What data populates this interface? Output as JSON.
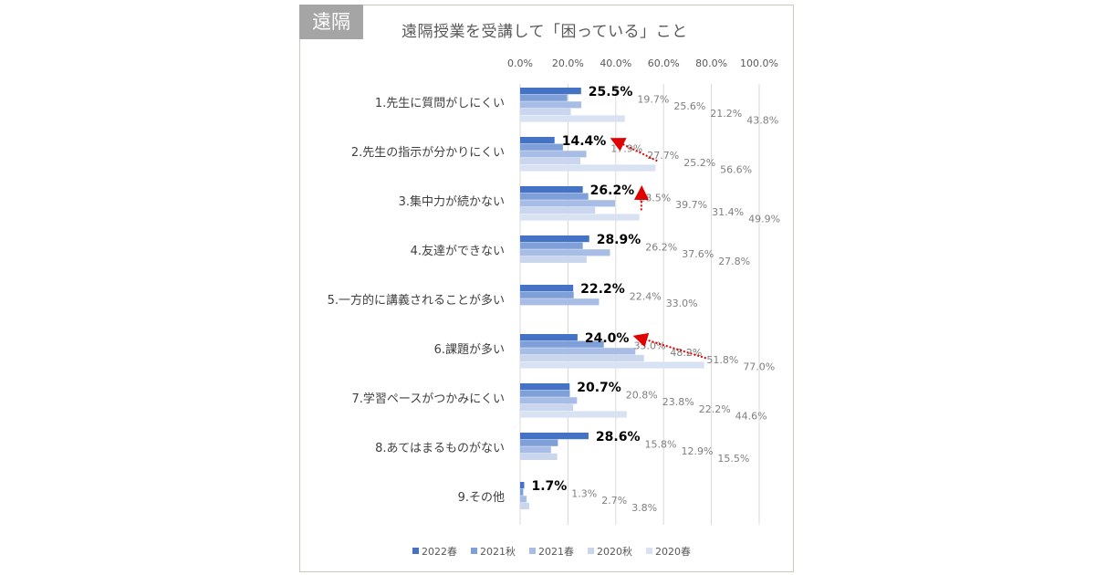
{
  "badge": "遠隔",
  "chart_data": {
    "type": "bar",
    "orientation": "horizontal",
    "title": "遠隔授業を受講して「困っている」こと",
    "categories": [
      "1.先生に質問がしにくい",
      "2.先生の指示が分かりにくい",
      "3.集中力が続かない",
      "4.友達ができない",
      "5.一方的に講義されることが多い",
      "6.課題が多い",
      "7.学習ペースがつかみにくい",
      "8.あてはまるものがない",
      "9.その他"
    ],
    "series": [
      {
        "name": "2022春",
        "color": "#4472c4",
        "values": [
          25.5,
          14.4,
          26.2,
          28.9,
          22.2,
          24.0,
          20.7,
          28.6,
          1.7
        ]
      },
      {
        "name": "2021秋",
        "color": "#7f9fd8",
        "values": [
          19.7,
          17.9,
          28.5,
          26.2,
          22.4,
          35.0,
          20.8,
          15.8,
          1.3
        ]
      },
      {
        "name": "2021春",
        "color": "#a8bde5",
        "values": [
          25.6,
          27.7,
          39.7,
          37.6,
          33.0,
          48.2,
          23.8,
          12.9,
          2.7
        ]
      },
      {
        "name": "2020秋",
        "color": "#c9d6ee",
        "values": [
          21.2,
          25.2,
          31.4,
          27.8,
          null,
          51.8,
          22.2,
          15.5,
          3.8
        ]
      },
      {
        "name": "2020春",
        "color": "#d9e2f3",
        "values": [
          43.8,
          56.6,
          49.9,
          null,
          null,
          77.0,
          44.6,
          null,
          null
        ]
      }
    ],
    "value_labels": "percent",
    "xlim": [
      0,
      100
    ],
    "xticks": [
      "0.0%",
      "20.0%",
      "40.0%",
      "60.0%",
      "80.0%",
      "100.0%"
    ],
    "xaxis_position": "top",
    "grid": true,
    "legend": "bottom",
    "annotations": "red dotted arrows from 2020春 to 2022春 values for categories 2, 3 and 6",
    "arrow_color": "#e00000"
  }
}
